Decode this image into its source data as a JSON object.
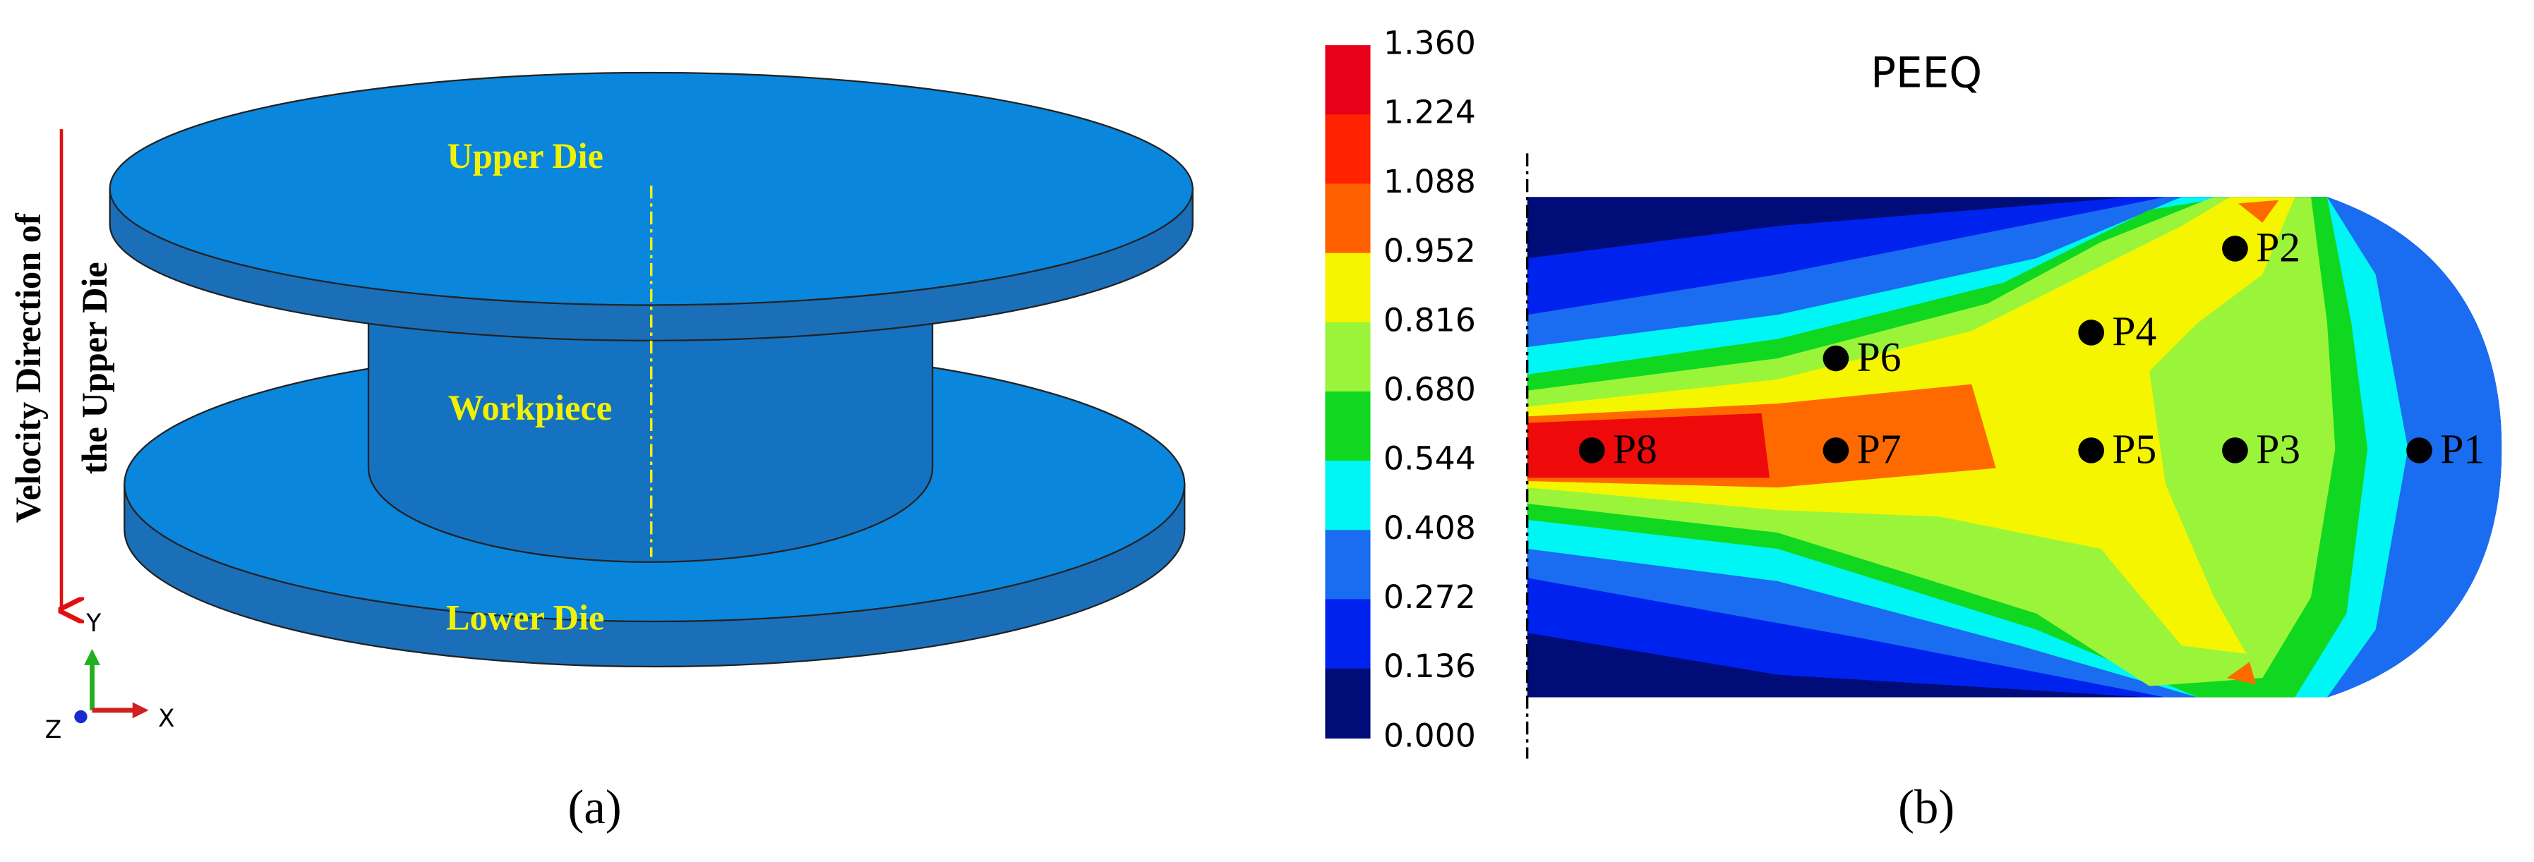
{
  "panel_a": {
    "labels": {
      "upper_die": "Upper Die",
      "workpiece": "Workpiece",
      "lower_die": "Lower Die"
    },
    "velocity_label": [
      "Velocity Direction of",
      "the Upper Die"
    ],
    "axes": {
      "y": "Y",
      "x": "X",
      "z": "Z"
    },
    "caption": "(a)"
  },
  "panel_b": {
    "title": "PEEQ",
    "legend": [
      "1.360",
      "1.224",
      "1.088",
      "0.952",
      "0.816",
      "0.680",
      "0.544",
      "0.408",
      "0.272",
      "0.136",
      "0.000"
    ],
    "points": [
      {
        "label": "P1"
      },
      {
        "label": "P2"
      },
      {
        "label": "P3"
      },
      {
        "label": "P4"
      },
      {
        "label": "P5"
      },
      {
        "label": "P6"
      },
      {
        "label": "P7"
      },
      {
        "label": "P8"
      }
    ],
    "caption": "(b)"
  }
}
